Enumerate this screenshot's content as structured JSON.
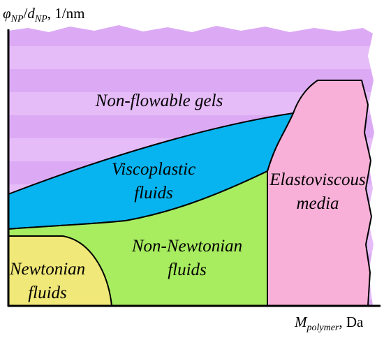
{
  "axes": {
    "y": {
      "symbol": "φ",
      "sub1": "NP",
      "sep": "/",
      "symbol2": "d",
      "sub2": "NP",
      "unit": ", 1/nm"
    },
    "x": {
      "symbol": "M",
      "sub": "polymer",
      "unit": ", Da"
    }
  },
  "regions": {
    "gels": {
      "label": "Non-flowable gels"
    },
    "viscoplastic": {
      "line1": "Viscoplastic",
      "line2": "fluids"
    },
    "elastoviscous": {
      "line1": "Elastoviscous",
      "line2": "media"
    },
    "non_newtonian": {
      "line1": "Non-Newtonian",
      "line2": "fluids"
    },
    "newtonian": {
      "line1": "Newtonian",
      "line2": "fluids"
    }
  }
}
